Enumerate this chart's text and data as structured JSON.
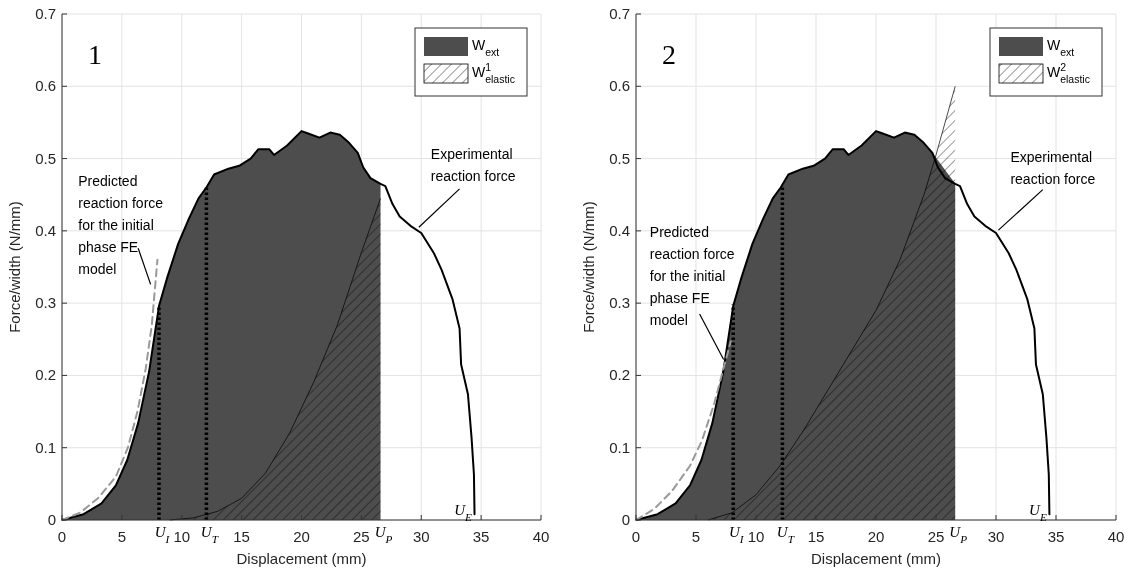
{
  "chart_data": [
    {
      "type": "line",
      "xlabel": "Displacement (mm)",
      "ylabel": "Force/width (N/mm)",
      "xlim": [
        0,
        40
      ],
      "ylim": [
        0,
        0.7
      ],
      "xticks": [
        0,
        5,
        10,
        15,
        20,
        25,
        30,
        35,
        40
      ],
      "yticks": [
        0,
        0.1,
        0.2,
        0.3,
        0.4,
        0.5,
        0.6,
        0.7
      ],
      "grid": true,
      "legend": "top right",
      "series": [
        {
          "type": "area",
          "name": "W$_{ext}$",
          "color": "#4d4d4d",
          "x": [
            0,
            1.8,
            3.3,
            4.5,
            5.45,
            6.36,
            7.27,
            8.1,
            8.8,
            9.7,
            10.6,
            11.4,
            12.06,
            12.7,
            13.9,
            14.8,
            15.75,
            16.4,
            17.3,
            17.7,
            18.8,
            20.0,
            20.5,
            21.5,
            22.4,
            23.2,
            23.9,
            24.7,
            25.15,
            25.76,
            26.6
          ],
          "values": [
            0,
            0.008,
            0.023,
            0.048,
            0.083,
            0.134,
            0.205,
            0.296,
            0.336,
            0.382,
            0.417,
            0.445,
            0.46,
            0.478,
            0.486,
            0.49,
            0.5,
            0.513,
            0.513,
            0.505,
            0.518,
            0.538,
            0.535,
            0.529,
            0.536,
            0.533,
            0.523,
            0.508,
            0.488,
            0.473,
            0.465
          ]
        },
        {
          "type": "area",
          "name": "W$^{1}$$_{elastic}$",
          "color": "#000000",
          "x": [
            9,
            11,
            13,
            15,
            17,
            19,
            21,
            23,
            25,
            26.6
          ],
          "values": [
            0,
            0.003,
            0.012,
            0.03,
            0.065,
            0.12,
            0.19,
            0.27,
            0.37,
            0.445
          ]
        },
        {
          "type": "line",
          "color": "#000000",
          "x": [
            0,
            1.8,
            3.3,
            4.5,
            5.45,
            6.36,
            7.27,
            8.1,
            8.8,
            9.7,
            10.6,
            11.4,
            12.06,
            12.7,
            13.9,
            14.8,
            15.75,
            16.4,
            17.3,
            17.7,
            18.8,
            20.0,
            20.5,
            21.5,
            22.4,
            23.2,
            23.9,
            24.7,
            25.15,
            25.76,
            26.6,
            27.0,
            27.6,
            28.2,
            29.1,
            30.0,
            31.06,
            31.7,
            32.6,
            33.2,
            33.33,
            33.9,
            34.2,
            34.4,
            34.45
          ],
          "values": [
            0,
            0.008,
            0.023,
            0.048,
            0.083,
            0.134,
            0.205,
            0.296,
            0.336,
            0.382,
            0.417,
            0.445,
            0.46,
            0.478,
            0.486,
            0.49,
            0.5,
            0.513,
            0.513,
            0.505,
            0.518,
            0.538,
            0.535,
            0.529,
            0.536,
            0.533,
            0.523,
            0.508,
            0.488,
            0.473,
            0.465,
            0.462,
            0.437,
            0.42,
            0.407,
            0.397,
            0.369,
            0.346,
            0.306,
            0.265,
            0.215,
            0.174,
            0.114,
            0.063,
            0.008
          ]
        },
        {
          "type": "line",
          "color": "#999999",
          "line_style": "dashed",
          "x": [
            0,
            1.5,
            3,
            4.5,
            5.5,
            6.3,
            7,
            7.5,
            7.97
          ],
          "values": [
            0,
            0.01,
            0.03,
            0.06,
            0.1,
            0.15,
            0.21,
            0.27,
            0.36
          ]
        },
        {
          "type": "line",
          "color": "#000000",
          "line_style": "dotted",
          "x": [
            8.1,
            8.1
          ],
          "values": [
            0,
            0.296
          ]
        },
        {
          "type": "line",
          "color": "#000000",
          "line_style": "dotted",
          "x": [
            12.06,
            12.06
          ],
          "values": [
            0,
            0.46
          ]
        }
      ],
      "annotations": [
        "1",
        {
          "text": "Predicted reaction force for the initial phase FE model",
          "x": 7.4,
          "y": 0.326
        },
        {
          "text": "Experimental reaction force",
          "x": 29.8,
          "y": 0.405
        },
        {
          "text": "U$_{I}$",
          "x": 8.1,
          "y": 0
        },
        {
          "text": "U$_{T}$",
          "x": 12.06,
          "y": 0
        },
        {
          "text": "U$_{P}$",
          "x": 26.6,
          "y": 0
        },
        {
          "text": "U$_{E}$",
          "x": 34.4,
          "y": 0.01
        }
      ]
    },
    {
      "type": "line",
      "xlabel": "Displacement (mm)",
      "ylabel": "Force/width (N/mm)",
      "xlim": [
        0,
        40
      ],
      "ylim": [
        0,
        0.7
      ],
      "xticks": [
        0,
        5,
        10,
        15,
        20,
        25,
        30,
        35,
        40
      ],
      "yticks": [
        0,
        0.1,
        0.2,
        0.3,
        0.4,
        0.5,
        0.6,
        0.7
      ],
      "grid": true,
      "legend": "top right",
      "series": [
        {
          "type": "area",
          "name": "W$_{ext}$",
          "color": "#4d4d4d",
          "x": [
            0,
            1.8,
            3.3,
            4.5,
            5.45,
            6.36,
            7.27,
            8.1,
            8.8,
            9.7,
            10.6,
            11.4,
            12.06,
            12.7,
            13.9,
            14.8,
            15.75,
            16.4,
            17.3,
            17.7,
            18.8,
            20.0,
            20.5,
            21.5,
            22.4,
            23.2,
            23.9,
            24.7,
            25.15,
            25.76,
            26.6
          ],
          "values": [
            0,
            0.008,
            0.023,
            0.048,
            0.083,
            0.134,
            0.205,
            0.296,
            0.336,
            0.382,
            0.417,
            0.445,
            0.46,
            0.478,
            0.486,
            0.49,
            0.5,
            0.513,
            0.513,
            0.505,
            0.518,
            0.538,
            0.535,
            0.529,
            0.536,
            0.533,
            0.523,
            0.508,
            null,
            null,
            0.465
          ]
        },
        {
          "type": "area",
          "name": "W$^{2}$$_{elastic}$",
          "color": "#000000",
          "x": [
            6,
            8,
            10,
            12,
            14,
            16,
            18,
            20,
            22,
            24,
            25,
            26.6
          ],
          "values": [
            0,
            0.01,
            0.035,
            0.075,
            0.125,
            0.18,
            0.235,
            0.29,
            0.36,
            0.45,
            0.505,
            0.6
          ]
        },
        {
          "type": "line",
          "color": "#000000",
          "x": [
            0,
            1.8,
            3.3,
            4.5,
            5.45,
            6.36,
            7.27,
            8.1,
            8.8,
            9.7,
            10.6,
            11.4,
            12.06,
            12.7,
            13.9,
            14.8,
            15.75,
            16.4,
            17.3,
            17.7,
            18.8,
            20.0,
            20.5,
            21.5,
            22.4,
            23.2,
            23.9,
            24.7,
            25.15,
            25.76,
            26.6,
            27.0,
            27.6,
            28.2,
            29.1,
            30.0,
            31.06,
            31.7,
            32.6,
            33.2,
            33.33,
            33.9,
            34.2,
            34.4,
            34.45
          ],
          "values": [
            0,
            0.008,
            0.023,
            0.048,
            0.083,
            0.134,
            0.205,
            0.296,
            0.336,
            0.382,
            0.417,
            0.445,
            0.46,
            0.478,
            0.486,
            0.49,
            0.5,
            0.513,
            0.513,
            0.505,
            0.518,
            0.538,
            0.535,
            0.529,
            0.536,
            0.533,
            0.523,
            0.508,
            0.488,
            0.473,
            0.465,
            0.462,
            0.437,
            0.42,
            0.407,
            0.397,
            0.369,
            0.346,
            0.306,
            0.265,
            0.215,
            0.174,
            0.114,
            0.063,
            0.008
          ]
        },
        {
          "type": "line",
          "color": "#999999",
          "line_style": "dashed",
          "x": [
            0,
            1.5,
            3,
            4.5,
            5.5,
            6.5,
            7.3,
            7.9
          ],
          "values": [
            0,
            0.015,
            0.04,
            0.075,
            0.11,
            0.16,
            0.21,
            0.247
          ]
        },
        {
          "type": "line",
          "color": "#000000",
          "line_style": "dotted",
          "x": [
            8.1,
            8.1
          ],
          "values": [
            0,
            0.298
          ]
        },
        {
          "type": "line",
          "color": "#000000",
          "line_style": "dotted",
          "x": [
            12.2,
            12.2
          ],
          "values": [
            0,
            0.46
          ]
        }
      ],
      "annotations": [
        "2",
        {
          "text": "Predicted reaction force for the initial phase FE model",
          "x": 7.3,
          "y": 0.222
        },
        {
          "text": "Experimental reaction force",
          "x": 30.2,
          "y": 0.401
        },
        {
          "text": "U$_{I}$",
          "x": 8.1,
          "y": 0
        },
        {
          "text": "U$_{T}$",
          "x": 12.2,
          "y": 0
        },
        {
          "text": "U$_{P}$",
          "x": 26.6,
          "y": 0
        },
        {
          "text": "U$_{E}$",
          "x": 34.4,
          "y": 0.01
        }
      ]
    }
  ]
}
